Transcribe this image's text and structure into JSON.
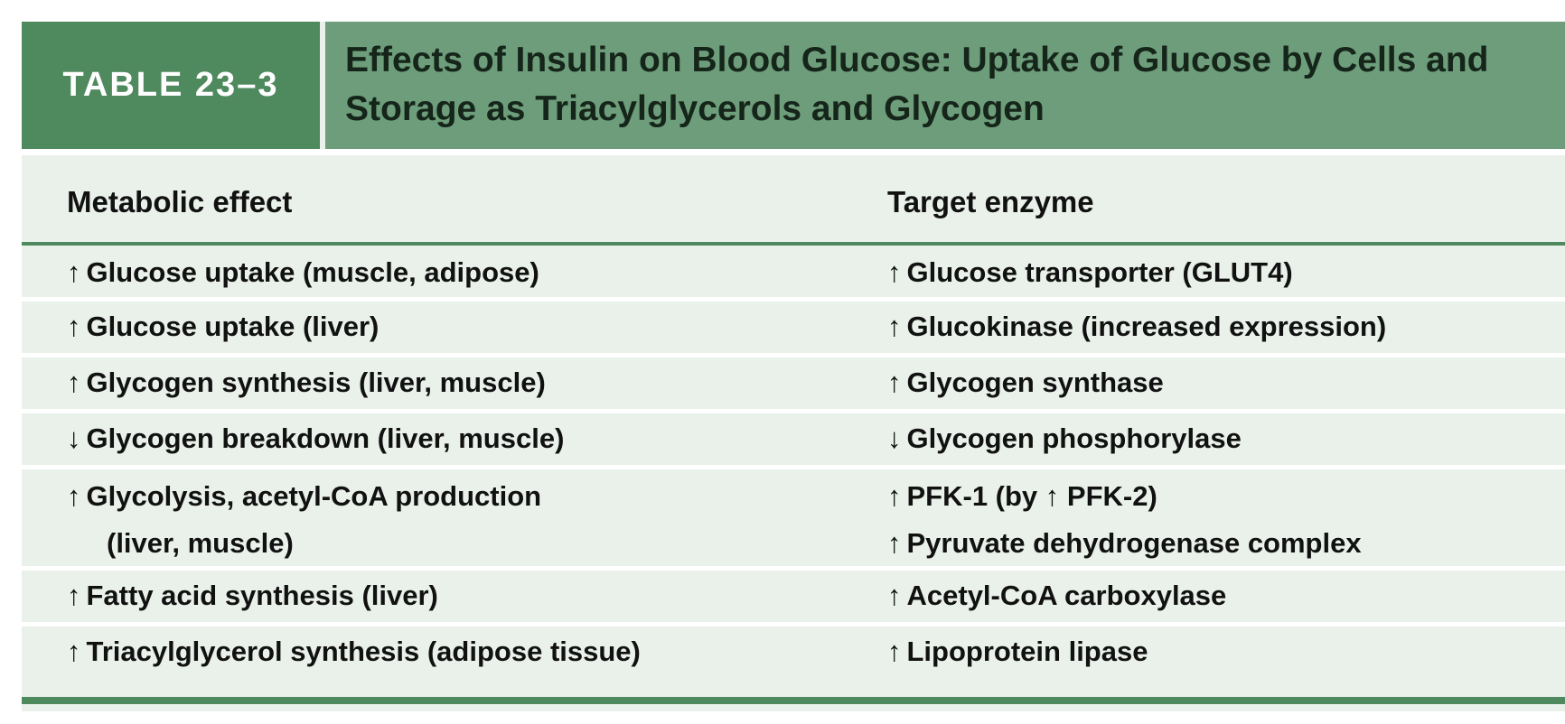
{
  "table": {
    "label": "TABLE 23–3",
    "title": "Effects of Insulin on Blood Glucose: Uptake of Glucose by Cells and Storage as Triacylglycerols and Glycogen",
    "columns": [
      "Metabolic effect",
      "Target enzyme"
    ],
    "rows": [
      {
        "effect_arrow": "↑",
        "effect": "Glucose uptake (muscle, adipose)",
        "enzymes": [
          {
            "arrow": "↑",
            "text": "Glucose transporter (GLUT4)"
          }
        ]
      },
      {
        "effect_arrow": "↑",
        "effect": "Glucose uptake (liver)",
        "enzymes": [
          {
            "arrow": "↑",
            "text": "Glucokinase (increased expression)"
          }
        ]
      },
      {
        "effect_arrow": "↑",
        "effect": "Glycogen synthesis (liver, muscle)",
        "enzymes": [
          {
            "arrow": "↑",
            "text": "Glycogen synthase"
          }
        ]
      },
      {
        "effect_arrow": "↓",
        "effect": "Glycogen breakdown (liver, muscle)",
        "enzymes": [
          {
            "arrow": "↓",
            "text": "Glycogen phosphorylase"
          }
        ]
      },
      {
        "effect_arrow": "↑",
        "effect": "Glycolysis, acetyl-CoA production",
        "effect_cont": "(liver, muscle)",
        "enzymes": [
          {
            "arrow": "↑",
            "text": "PFK-1 (by ↑ PFK-2)"
          },
          {
            "arrow": "↑",
            "text": "Pyruvate dehydrogenase complex"
          }
        ]
      },
      {
        "effect_arrow": "↑",
        "effect": "Fatty acid synthesis (liver)",
        "enzymes": [
          {
            "arrow": "↑",
            "text": "Acetyl-CoA carboxylase"
          }
        ]
      },
      {
        "effect_arrow": "↑",
        "effect": "Triacylglycerol synthesis (adipose tissue)",
        "enzymes": [
          {
            "arrow": "↑",
            "text": "Lipoprotein lipase"
          }
        ]
      }
    ]
  },
  "colors": {
    "label_bg": "#4f8a5e",
    "header_bg": "#6d9d7a",
    "table_bg": "#e9f1ea"
  }
}
